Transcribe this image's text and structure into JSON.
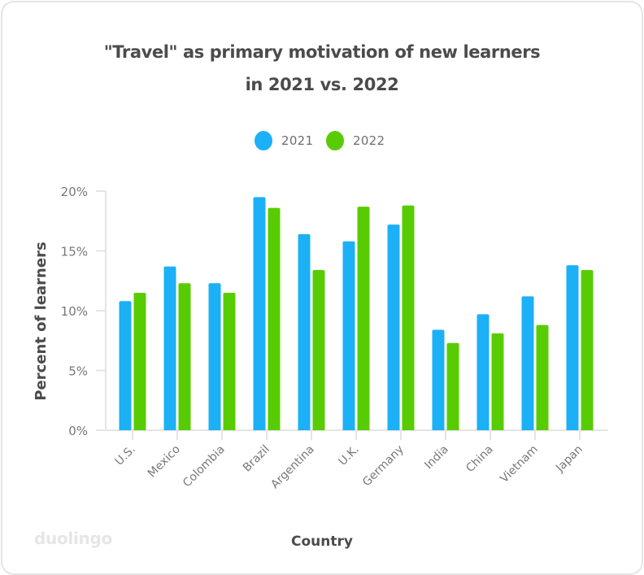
{
  "title_lines": [
    "\"Travel\" as primary motivation of new learners",
    "in 2021 vs. 2022"
  ],
  "legend": [
    {
      "label": "2021",
      "color": "#1cb0f6"
    },
    {
      "label": "2022",
      "color": "#58cc02"
    }
  ],
  "brand": "duolingo",
  "chart_data": {
    "type": "bar",
    "title": "\"Travel\" as primary motivation of new learners in 2021 vs. 2022",
    "xlabel": "Country",
    "ylabel": "Percent of learners",
    "ylim": [
      0,
      20
    ],
    "yticks": [
      "0%",
      "5%",
      "10%",
      "15%",
      "20%"
    ],
    "ytick_values": [
      0,
      5,
      10,
      15,
      20
    ],
    "grid": false,
    "legend_position": "top",
    "categories": [
      "U.S.",
      "Mexico",
      "Colombia",
      "Brazil",
      "Argentina",
      "U.K.",
      "Germany",
      "India",
      "China",
      "Vietnam",
      "Japan"
    ],
    "series": [
      {
        "name": "2021",
        "color": "#1cb0f6",
        "values": [
          10.8,
          13.7,
          12.3,
          19.5,
          16.4,
          15.8,
          17.2,
          8.4,
          9.7,
          11.2,
          13.8
        ]
      },
      {
        "name": "2022",
        "color": "#58cc02",
        "values": [
          11.5,
          12.3,
          11.5,
          18.6,
          13.4,
          18.7,
          18.8,
          7.3,
          8.1,
          8.8,
          13.4
        ]
      }
    ]
  }
}
